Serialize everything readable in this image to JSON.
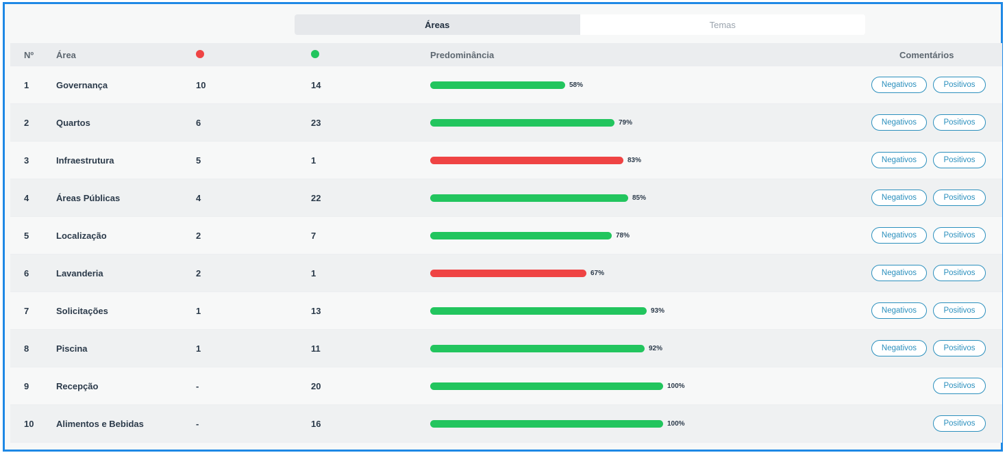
{
  "tabs": [
    {
      "label": "Áreas",
      "active": true
    },
    {
      "label": "Temas",
      "active": false
    }
  ],
  "headers": {
    "num": "Nº",
    "area": "Área",
    "negative_icon": "red-dot-icon",
    "positive_icon": "green-dot-icon",
    "predominance": "Predominância",
    "comments": "Comentários"
  },
  "colors": {
    "positive": "#22c55e",
    "negative": "#ef4444",
    "accent": "#2a8fbd",
    "frame": "#1e88e5"
  },
  "buttons": {
    "negative": "Negativos",
    "positive": "Positivos"
  },
  "rows": [
    {
      "num": "1",
      "area": "Governança",
      "neg": "10",
      "pos": "14",
      "pct": "58%",
      "value": 58,
      "dominant": "positive",
      "has_negative": true
    },
    {
      "num": "2",
      "area": "Quartos",
      "neg": "6",
      "pos": "23",
      "pct": "79%",
      "value": 79,
      "dominant": "positive",
      "has_negative": true
    },
    {
      "num": "3",
      "area": "Infraestrutura",
      "neg": "5",
      "pos": "1",
      "pct": "83%",
      "value": 83,
      "dominant": "negative",
      "has_negative": true
    },
    {
      "num": "4",
      "area": "Áreas Públicas",
      "neg": "4",
      "pos": "22",
      "pct": "85%",
      "value": 85,
      "dominant": "positive",
      "has_negative": true
    },
    {
      "num": "5",
      "area": "Localização",
      "neg": "2",
      "pos": "7",
      "pct": "78%",
      "value": 78,
      "dominant": "positive",
      "has_negative": true
    },
    {
      "num": "6",
      "area": "Lavanderia",
      "neg": "2",
      "pos": "1",
      "pct": "67%",
      "value": 67,
      "dominant": "negative",
      "has_negative": true
    },
    {
      "num": "7",
      "area": "Solicitações",
      "neg": "1",
      "pos": "13",
      "pct": "93%",
      "value": 93,
      "dominant": "positive",
      "has_negative": true
    },
    {
      "num": "8",
      "area": "Piscina",
      "neg": "1",
      "pos": "11",
      "pct": "92%",
      "value": 92,
      "dominant": "positive",
      "has_negative": true
    },
    {
      "num": "9",
      "area": "Recepção",
      "neg": "-",
      "pos": "20",
      "pct": "100%",
      "value": 100,
      "dominant": "positive",
      "has_negative": false
    },
    {
      "num": "10",
      "area": "Alimentos e Bebidas",
      "neg": "-",
      "pos": "16",
      "pct": "100%",
      "value": 100,
      "dominant": "positive",
      "has_negative": false
    }
  ]
}
